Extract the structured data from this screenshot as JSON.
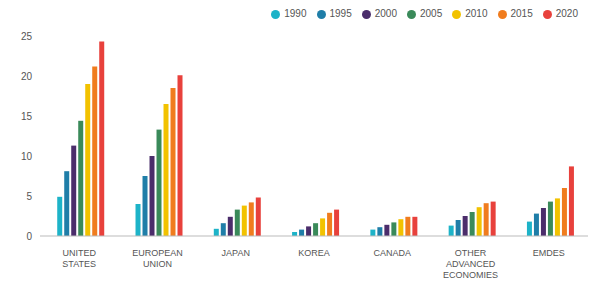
{
  "chart_data": {
    "type": "bar",
    "categories": [
      "UNITED STATES",
      "EUROPEAN UNION",
      "JAPAN",
      "KOREA",
      "CANADA",
      "OTHER ADVANCED ECONOMIES",
      "EMDES"
    ],
    "series": [
      {
        "name": "1990",
        "color": "#1db3c8",
        "values": [
          4.9,
          4.0,
          0.9,
          0.5,
          0.8,
          1.3,
          1.8
        ]
      },
      {
        "name": "1995",
        "color": "#1f7ea8",
        "values": [
          8.1,
          7.5,
          1.6,
          0.8,
          1.1,
          2.0,
          2.8
        ]
      },
      {
        "name": "2000",
        "color": "#4b2d6b",
        "values": [
          11.3,
          10.0,
          2.4,
          1.2,
          1.4,
          2.5,
          3.5
        ]
      },
      {
        "name": "2005",
        "color": "#3a8a5a",
        "values": [
          14.4,
          13.3,
          3.3,
          1.6,
          1.7,
          3.0,
          4.3
        ]
      },
      {
        "name": "2010",
        "color": "#f2c200",
        "values": [
          19.0,
          16.5,
          3.8,
          2.2,
          2.1,
          3.6,
          4.7
        ]
      },
      {
        "name": "2015",
        "color": "#f07c1e",
        "values": [
          21.2,
          18.5,
          4.2,
          2.9,
          2.4,
          4.1,
          6.0
        ]
      },
      {
        "name": "2020",
        "color": "#e8413c",
        "values": [
          24.3,
          20.1,
          4.8,
          3.3,
          2.4,
          4.3,
          8.7
        ]
      }
    ],
    "ylim": [
      0,
      25
    ],
    "yticks": [
      0,
      5,
      10,
      15,
      20,
      25
    ],
    "grid": false,
    "legend": "top-right"
  }
}
